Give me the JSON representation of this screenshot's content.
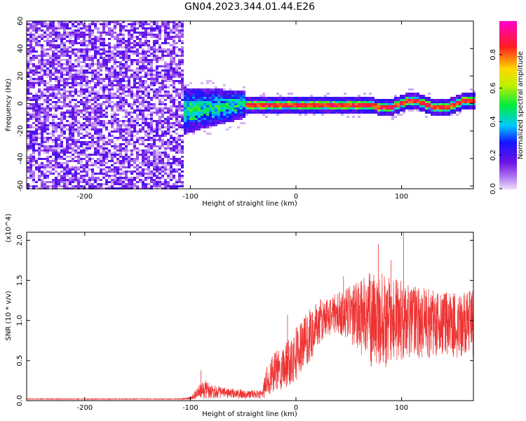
{
  "title": "GN04.2023.344.01.44.E26",
  "chart_data": [
    {
      "type": "heatmap",
      "xlabel": "Height of straight line (km)",
      "ylabel": "Frequency (Hz)",
      "xlim": [
        -255,
        168
      ],
      "ylim": [
        -62,
        60
      ],
      "xticks": [
        "-200",
        "-100",
        "0",
        "100"
      ],
      "xtick_values": [
        -200,
        -100,
        0,
        100
      ],
      "yticks": [
        "60",
        "40",
        "20",
        "0",
        "-20",
        "-40",
        "-60"
      ],
      "ytick_values": [
        60,
        40,
        20,
        0,
        -20,
        -40,
        -60
      ],
      "colorbar": {
        "label": "Normalized spectral amplitude",
        "range": [
          0,
          1
        ],
        "ticks": [
          "0.0",
          "0.2",
          "0.4",
          "0.6",
          "0.8"
        ],
        "tick_values": [
          0.0,
          0.2,
          0.4,
          0.6,
          0.8
        ],
        "colormap": "rainbow (violet-blue-cyan-green-yellow-red-magenta)"
      },
      "regions": [
        {
          "x_range": [
            -255,
            -108
          ],
          "description_amplitude": [
            0.0,
            0.25
          ],
          "pattern": "broadband noise"
        },
        {
          "x_range": [
            -115,
            -50
          ],
          "center_freq": [
            -5,
            0
          ],
          "width_hz": [
            18,
            10
          ],
          "amplitude": [
            0.2,
            0.45
          ]
        },
        {
          "x_range": [
            -50,
            168
          ],
          "center_freq": 0,
          "width_hz": 6,
          "amplitude_peak": 0.9
        }
      ],
      "grid": false
    },
    {
      "type": "line",
      "xlabel": "Height of straight line (km)",
      "ylabel": "SNR (10 * v/v)",
      "y_multiplier": "(x10^4)",
      "xlim": [
        -255,
        168
      ],
      "ylim": [
        0,
        2.1
      ],
      "xticks": [
        "-200",
        "-100",
        "0",
        "100"
      ],
      "xtick_values": [
        -200,
        -100,
        0,
        100
      ],
      "yticks": [
        "0.0",
        "0.5",
        "1.0",
        "1.5",
        "2.0"
      ],
      "ytick_values": [
        0.0,
        0.5,
        1.0,
        1.5,
        2.0
      ],
      "color": "#ee3333",
      "series": [
        {
          "x": [
            -255,
            -150,
            -110,
            -100,
            -95,
            -90,
            -85,
            -80,
            -70,
            -60,
            -50,
            -40,
            -32,
            -28,
            -20,
            -10,
            0,
            10,
            20,
            30,
            40,
            50,
            60,
            70,
            80,
            90,
            100,
            110,
            120,
            130,
            140,
            150,
            160,
            168
          ],
          "y_mean": [
            0.02,
            0.02,
            0.02,
            0.03,
            0.08,
            0.12,
            0.14,
            0.12,
            0.1,
            0.09,
            0.08,
            0.08,
            0.07,
            0.25,
            0.35,
            0.45,
            0.6,
            0.75,
            0.95,
            1.05,
            1.1,
            1.08,
            1.05,
            1.0,
            1.0,
            0.98,
            1.0,
            0.98,
            0.97,
            0.97,
            0.96,
            0.95,
            0.95,
            0.95
          ],
          "y_amplitude": [
            0.005,
            0.005,
            0.005,
            0.02,
            0.06,
            0.1,
            0.12,
            0.09,
            0.07,
            0.06,
            0.06,
            0.05,
            0.05,
            0.2,
            0.25,
            0.3,
            0.35,
            0.35,
            0.3,
            0.25,
            0.25,
            0.35,
            0.45,
            0.6,
            0.6,
            0.55,
            0.5,
            0.45,
            0.45,
            0.45,
            0.42,
            0.42,
            0.42,
            0.42
          ],
          "peaks": [
            {
              "x": 102,
              "y": 2.1
            },
            {
              "x": 78,
              "y": 1.95
            },
            {
              "x": 90,
              "y": 1.75
            },
            {
              "x": 45,
              "y": 1.55
            },
            {
              "x": -8,
              "y": 1.07
            },
            {
              "x": -90,
              "y": 0.38
            }
          ]
        }
      ],
      "grid": false
    }
  ]
}
